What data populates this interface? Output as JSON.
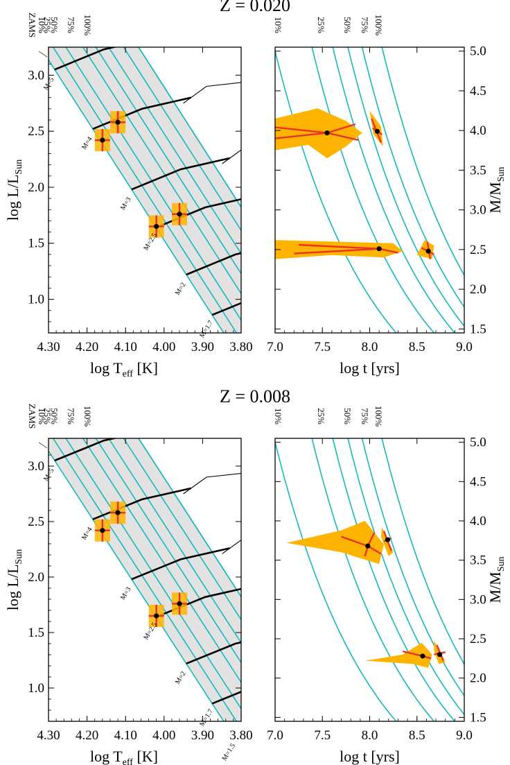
{
  "chart_data": [
    {
      "type": "scatter",
      "title": "Z =  0.020",
      "xlabel": "log T",
      "xlabel_sub": "eff",
      "xlabel_unit": " [K]",
      "ylabel": "log L/L",
      "ylabel_sub": "Sun",
      "xlim": [
        4.3,
        3.8
      ],
      "ylim": [
        0.7,
        3.25
      ],
      "xticks": [
        "4.30",
        "4.20",
        "4.10",
        "4.00",
        "3.90",
        "3.80"
      ],
      "yticks": [
        "1.0",
        "1.5",
        "2.0",
        "2.5",
        "3.0"
      ],
      "isochrone_labels": [
        "ZAMS",
        "10%",
        "25%",
        "50%",
        "75%",
        "100%"
      ],
      "tracks": [
        "M=5",
        "M=4",
        "M=3",
        "M=2.5",
        "M=2",
        "M=1.7"
      ],
      "stars": [
        {
          "logTeff": 4.12,
          "logL": 2.58
        },
        {
          "logTeff": 4.16,
          "logL": 2.42
        },
        {
          "logTeff": 3.96,
          "logL": 1.76
        },
        {
          "logTeff": 4.02,
          "logL": 1.65
        }
      ]
    },
    {
      "type": "scatter",
      "xlabel": "log t [yrs]",
      "ylabel": "M/M",
      "ylabel_sub": "Sun",
      "xlim": [
        7.0,
        9.0
      ],
      "ylim": [
        1.45,
        5.05
      ],
      "xticks": [
        "7.0",
        "7.5",
        "8.0",
        "8.5",
        "9.0"
      ],
      "yticks": [
        "1.5",
        "2.0",
        "2.5",
        "3.0",
        "3.5",
        "4.0",
        "4.5",
        "5.0"
      ],
      "isochrone_labels": [
        "10%",
        "25%",
        "50%",
        "75%",
        "100%"
      ],
      "stars": [
        {
          "logt": 7.55,
          "mass": 3.97
        },
        {
          "logt": 8.08,
          "mass": 3.99
        },
        {
          "logt": 8.1,
          "mass": 2.51
        },
        {
          "logt": 8.62,
          "mass": 2.48
        }
      ]
    },
    {
      "type": "scatter",
      "title": "Z =  0.008",
      "xlabel": "log T",
      "xlabel_sub": "eff",
      "xlabel_unit": " [K]",
      "ylabel": "log L/L",
      "ylabel_sub": "Sun",
      "xlim": [
        4.3,
        3.8
      ],
      "ylim": [
        0.7,
        3.25
      ],
      "xticks": [
        "4.30",
        "4.20",
        "4.10",
        "4.00",
        "3.90",
        "3.80"
      ],
      "yticks": [
        "1.0",
        "1.5",
        "2.0",
        "2.5",
        "3.0"
      ],
      "isochrone_labels": [
        "ZAMS",
        "10%",
        "25%",
        "50%",
        "75%",
        "100%"
      ],
      "tracks": [
        "M=5",
        "M=4",
        "M=3",
        "M=2.5",
        "M=2",
        "M=1.7",
        "M=1.5"
      ],
      "stars": [
        {
          "logTeff": 4.12,
          "logL": 2.58
        },
        {
          "logTeff": 4.16,
          "logL": 2.42
        },
        {
          "logTeff": 3.96,
          "logL": 1.76
        },
        {
          "logTeff": 4.02,
          "logL": 1.65
        }
      ]
    },
    {
      "type": "scatter",
      "xlabel": "log t [yrs]",
      "ylabel": "M/M",
      "ylabel_sub": "Sun",
      "xlim": [
        7.0,
        9.0
      ],
      "ylim": [
        1.45,
        5.05
      ],
      "xticks": [
        "7.0",
        "7.5",
        "8.0",
        "8.5",
        "9.0"
      ],
      "yticks": [
        "1.5",
        "2.0",
        "2.5",
        "3.0",
        "3.5",
        "4.0",
        "4.5",
        "5.0"
      ],
      "isochrone_labels": [
        "10%",
        "25%",
        "50%",
        "75%",
        "100%"
      ],
      "stars": [
        {
          "logt": 7.98,
          "mass": 3.68
        },
        {
          "logt": 8.19,
          "mass": 3.76
        },
        {
          "logt": 8.56,
          "mass": 2.28
        },
        {
          "logt": 8.74,
          "mass": 2.3
        }
      ]
    }
  ],
  "colors": {
    "isochrone": "#17b8b8",
    "shade": "#e2e2e2",
    "box": "#ffb400",
    "cross": "#e8322a",
    "point": "#000000"
  }
}
